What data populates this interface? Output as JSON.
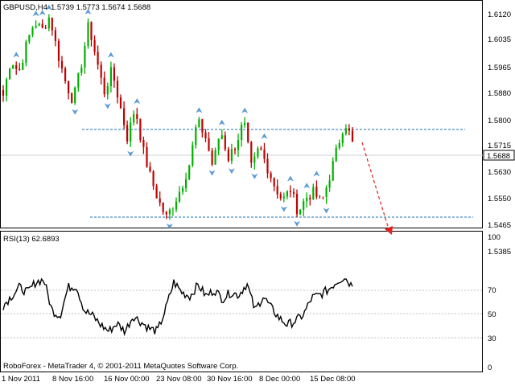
{
  "header": {
    "symbol_text": "GBPUSD,H4",
    "ohlc_text": "1.5739 1.5773 1.5674 1.5688"
  },
  "price_axis": {
    "ticks": [
      "1.6120",
      "1.6035",
      "1.5965",
      "1.5880",
      "1.5800",
      "1.5715",
      "1.5630",
      "1.5550",
      "1.5465",
      "1.5385"
    ],
    "current_price": "1.5688",
    "current_price_color": "#000000"
  },
  "rsi_panel": {
    "label": "RSI(13) 62.6893",
    "ticks": [
      "100",
      "70",
      "50",
      "30",
      "0"
    ]
  },
  "time_axis": {
    "labels": [
      "1 Nov 2011",
      "8 Nov 16:00",
      "16 Nov 00:00",
      "23 Nov 08:00",
      "30 Nov 16:00",
      "8 Dec 00:00",
      "15 Dec 08:00"
    ]
  },
  "footer": {
    "copyright": "RoboForex - MetaTrader 4, © 2001-2011 MetaQuotes Software Corp."
  },
  "colors": {
    "bull_candle": "#00b000",
    "bear_candle": "#c00000",
    "fractal_arrow": "#5b9bd5",
    "level_line": "#1f6fb5",
    "forecast_arrow": "#e02020",
    "rsi_line": "#000000"
  },
  "chart_data": {
    "type": "line",
    "price_ylim": [
      1.5385,
      1.6175
    ],
    "resistance_level": 1.5773,
    "support_level": 1.5415,
    "rsi_ylim": [
      0,
      100
    ],
    "rsi_levels": [
      70,
      50,
      30
    ],
    "price_path": [
      1.585,
      1.598,
      1.593,
      1.603,
      1.611,
      1.608,
      1.613,
      1.6,
      1.59,
      1.583,
      1.595,
      1.61,
      1.598,
      1.586,
      1.594,
      1.582,
      1.57,
      1.581,
      1.566,
      1.556,
      1.548,
      1.542,
      1.547,
      1.553,
      1.561,
      1.576,
      1.571,
      1.56,
      1.573,
      1.563,
      1.568,
      1.576,
      1.559,
      1.567,
      1.56,
      1.553,
      1.548,
      1.552,
      1.544,
      1.549,
      1.551,
      1.547,
      1.556,
      1.566,
      1.576,
      1.5688
    ],
    "rsi_path": [
      48,
      55,
      62,
      58,
      66,
      68,
      44,
      40,
      62,
      63,
      44,
      40,
      33,
      28,
      34,
      28,
      40,
      35,
      30,
      28,
      45,
      66,
      58,
      55,
      64,
      55,
      60,
      53,
      58,
      56,
      65,
      44,
      55,
      46,
      38,
      33,
      36,
      41,
      54,
      56,
      60,
      66,
      70,
      62.69
    ]
  }
}
